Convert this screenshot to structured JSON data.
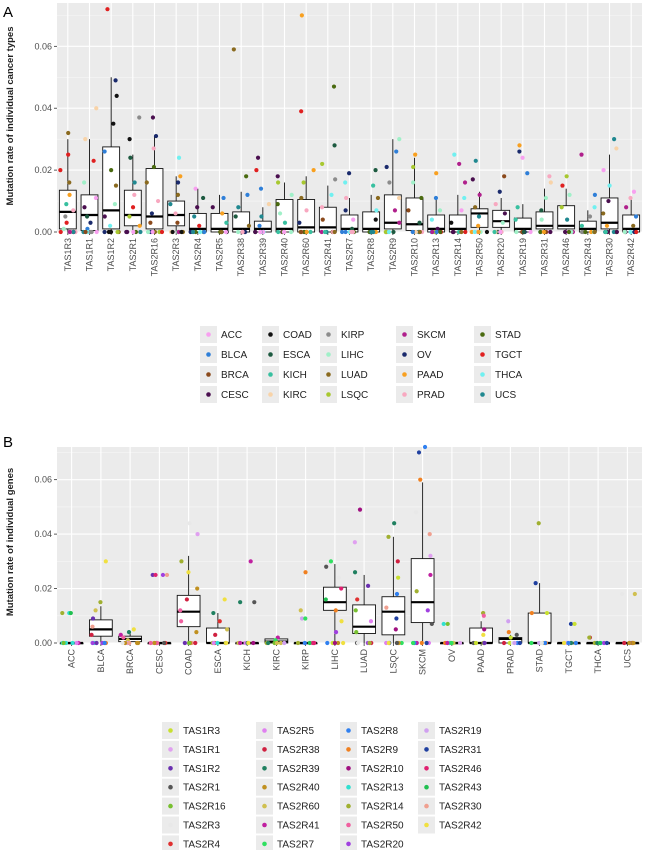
{
  "panels": [
    {
      "letter": "A"
    },
    {
      "letter": "B"
    }
  ],
  "chart_data": [
    {
      "type": "box",
      "panel": "A",
      "title": "",
      "xlabel": "",
      "ylabel": "Mutation rate of individual cancer types",
      "ylim": [
        0,
        0.074
      ],
      "yticks": [
        "0.00",
        "0.02",
        "0.04",
        "0.06"
      ],
      "ytick_values": [
        0,
        0.02,
        0.04,
        0.06
      ],
      "grid": true,
      "legend_position": "bottom",
      "categories": [
        "TAS1R3",
        "TAS1R1",
        "TAS1R2",
        "TAS2R1",
        "TAS2R16",
        "TAS2R3",
        "TAS2R4",
        "TAS2R5",
        "TAS2R38",
        "TAS2R39",
        "TAS2R40",
        "TAS2R60",
        "TAS2R41",
        "TAS2R7",
        "TAS2R8",
        "TAS2R9",
        "TAS2R10",
        "TAS2R13",
        "TAS2R14",
        "TAS2R50",
        "TAS2R20",
        "TAS2R19",
        "TAS2R31",
        "TAS2R46",
        "TAS2R43",
        "TAS2R30",
        "TAS2R42"
      ],
      "boxes": [
        {
          "q1": 0.001,
          "median": 0.0065,
          "q3": 0.0135,
          "lo": 0,
          "hi": 0.03
        },
        {
          "q1": 0.0005,
          "median": 0.0055,
          "q3": 0.012,
          "lo": 0,
          "hi": 0.03
        },
        {
          "q1": 0.001,
          "median": 0.007,
          "q3": 0.0275,
          "lo": 0,
          "hi": 0.05
        },
        {
          "q1": 0.002,
          "median": 0.0055,
          "q3": 0.0135,
          "lo": 0,
          "hi": 0.025
        },
        {
          "q1": 0.001,
          "median": 0.005,
          "q3": 0.0205,
          "lo": 0,
          "hi": 0.031
        },
        {
          "q1": 0.002,
          "median": 0.0055,
          "q3": 0.01,
          "lo": 0,
          "hi": 0.018
        },
        {
          "q1": 0,
          "median": 0.001,
          "q3": 0.006,
          "lo": 0,
          "hi": 0.014
        },
        {
          "q1": 0,
          "median": 0.001,
          "q3": 0.006,
          "lo": 0,
          "hi": 0.012
        },
        {
          "q1": 0,
          "median": 0.001,
          "q3": 0.0065,
          "lo": 0,
          "hi": 0.013
        },
        {
          "q1": 0,
          "median": 0.001,
          "q3": 0.0035,
          "lo": 0,
          "hi": 0.008
        },
        {
          "q1": 0,
          "median": 0.001,
          "q3": 0.0105,
          "lo": 0,
          "hi": 0.016
        },
        {
          "q1": 0,
          "median": 0.0015,
          "q3": 0.0105,
          "lo": 0,
          "hi": 0.018
        },
        {
          "q1": 0,
          "median": 0.0015,
          "q3": 0.008,
          "lo": 0,
          "hi": 0.015
        },
        {
          "q1": 0,
          "median": 0.001,
          "q3": 0.0055,
          "lo": 0,
          "hi": 0.011
        },
        {
          "q1": 0,
          "median": 0.001,
          "q3": 0.0065,
          "lo": 0,
          "hi": 0.012
        },
        {
          "q1": 0.001,
          "median": 0.003,
          "q3": 0.012,
          "lo": 0,
          "hi": 0.03
        },
        {
          "q1": 0.0005,
          "median": 0.0025,
          "q3": 0.011,
          "lo": 0,
          "hi": 0.024
        },
        {
          "q1": 0,
          "median": 0.001,
          "q3": 0.0055,
          "lo": 0,
          "hi": 0.011
        },
        {
          "q1": 0,
          "median": 0.001,
          "q3": 0.0055,
          "lo": 0,
          "hi": 0.012
        },
        {
          "q1": 0.0015,
          "median": 0.006,
          "q3": 0.0075,
          "lo": 0,
          "hi": 0.013
        },
        {
          "q1": 0.0015,
          "median": 0.0035,
          "q3": 0.007,
          "lo": 0,
          "hi": 0.011
        },
        {
          "q1": 0,
          "median": 0.001,
          "q3": 0.0045,
          "lo": 0,
          "hi": 0.009
        },
        {
          "q1": 0.001,
          "median": 0.002,
          "q3": 0.0065,
          "lo": 0,
          "hi": 0.014
        },
        {
          "q1": 0.001,
          "median": 0.002,
          "q3": 0.0085,
          "lo": 0,
          "hi": 0.014
        },
        {
          "q1": 0,
          "median": 0.001,
          "q3": 0.0035,
          "lo": 0,
          "hi": 0.007
        },
        {
          "q1": 0.001,
          "median": 0.003,
          "q3": 0.011,
          "lo": 0,
          "hi": 0.025
        },
        {
          "q1": 0,
          "median": 0.001,
          "q3": 0.0055,
          "lo": 0,
          "hi": 0.011
        }
      ],
      "outliers": [
        [
          0.032,
          0.025,
          0.02,
          0.016,
          0.012,
          0.009,
          0.007,
          0.005,
          0.003,
          0.001,
          0
        ],
        [
          0.04,
          0.03,
          0.023,
          0.016,
          0.011,
          0.008,
          0.005,
          0.003,
          0.001,
          0
        ],
        [
          0.072,
          0.049,
          0.044,
          0.035,
          0.026,
          0.02,
          0.015,
          0.009,
          0.005,
          0.002,
          0
        ],
        [
          0.037,
          0.03,
          0.024,
          0.016,
          0.012,
          0.008,
          0.005,
          0.002,
          0
        ],
        [
          0.037,
          0.031,
          0.027,
          0.021,
          0.016,
          0.01,
          0.006,
          0.003,
          0
        ],
        [
          0.024,
          0.018,
          0.016,
          0.012,
          0.009,
          0.006,
          0.003,
          0
        ],
        [
          0.014,
          0.011,
          0.008,
          0.005,
          0.002,
          0
        ],
        [
          0.011,
          0.008,
          0.006,
          0.003,
          0
        ],
        [
          0.059,
          0.018,
          0.012,
          0.008,
          0.005,
          0.002,
          0
        ],
        [
          0.024,
          0.02,
          0.014,
          0.009,
          0.005,
          0.002,
          0
        ],
        [
          0.018,
          0.016,
          0.012,
          0.009,
          0.006,
          0.003,
          0
        ],
        [
          0.07,
          0.039,
          0.02,
          0.016,
          0.011,
          0.007,
          0.003,
          0
        ],
        [
          0.047,
          0.028,
          0.022,
          0.017,
          0.012,
          0.008,
          0.004,
          0
        ],
        [
          0.019,
          0.016,
          0.011,
          0.007,
          0.004,
          0.001,
          0
        ],
        [
          0.02,
          0.015,
          0.011,
          0.007,
          0.004,
          0
        ],
        [
          0.03,
          0.026,
          0.021,
          0.016,
          0.011,
          0.007,
          0.003,
          0
        ],
        [
          0.025,
          0.021,
          0.016,
          0.011,
          0.007,
          0.003,
          0
        ],
        [
          0.019,
          0.011,
          0.007,
          0.004,
          0.001,
          0
        ],
        [
          0.025,
          0.022,
          0.016,
          0.011,
          0.007,
          0.003,
          0
        ],
        [
          0.023,
          0.017,
          0.012,
          0.008,
          0.005,
          0.002,
          0
        ],
        [
          0.018,
          0.013,
          0.009,
          0.006,
          0.003,
          0
        ],
        [
          0.028,
          0.026,
          0.024,
          0.019,
          0.008,
          0.004,
          0
        ],
        [
          0.018,
          0.016,
          0.011,
          0.007,
          0.004,
          0
        ],
        [
          0.018,
          0.015,
          0.012,
          0.008,
          0.004,
          0
        ],
        [
          0.025,
          0.012,
          0.008,
          0.005,
          0.002,
          0
        ],
        [
          0.03,
          0.027,
          0.02,
          0.015,
          0.01,
          0.006,
          0.002,
          0
        ],
        [
          0.013,
          0.011,
          0.008,
          0.005,
          0.002,
          0
        ]
      ],
      "legend": [
        {
          "name": "ACC",
          "color": "#f8a0f0"
        },
        {
          "name": "BLCA",
          "color": "#2f7fd8"
        },
        {
          "name": "BRCA",
          "color": "#8b4a1c"
        },
        {
          "name": "CESC",
          "color": "#4a0f4f"
        },
        {
          "name": "COAD",
          "color": "#111111"
        },
        {
          "name": "ESCA",
          "color": "#1d5a40"
        },
        {
          "name": "KICH",
          "color": "#38c0a0"
        },
        {
          "name": "KIRC",
          "color": "#f8d3a8"
        },
        {
          "name": "KIRP",
          "color": "#8c8c8c"
        },
        {
          "name": "LIHC",
          "color": "#a0f0c8"
        },
        {
          "name": "LUAD",
          "color": "#8a6a1f"
        },
        {
          "name": "LSQC",
          "color": "#a8c830"
        },
        {
          "name": "SKCM",
          "color": "#b0208c"
        },
        {
          "name": "OV",
          "color": "#1a2a6c"
        },
        {
          "name": "PAAD",
          "color": "#f8a020"
        },
        {
          "name": "PRAD",
          "color": "#f8a8c0"
        },
        {
          "name": "STAD",
          "color": "#4a6a10"
        },
        {
          "name": "TGCT",
          "color": "#e02020"
        },
        {
          "name": "THCA",
          "color": "#70f0f0"
        },
        {
          "name": "UCS",
          "color": "#208890"
        }
      ]
    },
    {
      "type": "box",
      "panel": "B",
      "title": "",
      "xlabel": "",
      "ylabel": "Mutation rate of individual genes",
      "ylim": [
        0,
        0.072
      ],
      "yticks": [
        "0.00",
        "0.02",
        "0.04",
        "0.06"
      ],
      "ytick_values": [
        0,
        0.02,
        0.04,
        0.06
      ],
      "grid": true,
      "legend_position": "bottom",
      "categories": [
        "ACC",
        "BLCA",
        "BRCA",
        "CESC",
        "COAD",
        "ESCA",
        "KICH",
        "KIRC",
        "KIRP",
        "LIHC",
        "LUAD",
        "LSQC",
        "SKCM",
        "OV",
        "PAAD",
        "PRAD",
        "STAD",
        "TGCT",
        "THCA",
        "UCS"
      ],
      "boxes": [
        {
          "q1": 0,
          "median": 0,
          "q3": 0,
          "lo": 0,
          "hi": 0
        },
        {
          "q1": 0.0025,
          "median": 0.005,
          "q3": 0.0085,
          "lo": 0,
          "hi": 0.0135
        },
        {
          "q1": 0.0005,
          "median": 0.0015,
          "q3": 0.0025,
          "lo": 0,
          "hi": 0.004
        },
        {
          "q1": 0,
          "median": 0,
          "q3": 0,
          "lo": 0,
          "hi": 0
        },
        {
          "q1": 0.006,
          "median": 0.0115,
          "q3": 0.0175,
          "lo": 0,
          "hi": 0.032
        },
        {
          "q1": 0,
          "median": 0,
          "q3": 0.0055,
          "lo": 0,
          "hi": 0.011
        },
        {
          "q1": 0,
          "median": 0,
          "q3": 0,
          "lo": 0,
          "hi": 0
        },
        {
          "q1": 0,
          "median": 0.0005,
          "q3": 0.0015,
          "lo": 0,
          "hi": 0.002
        },
        {
          "q1": 0,
          "median": 0,
          "q3": 0,
          "lo": 0,
          "hi": 0
        },
        {
          "q1": 0.012,
          "median": 0.015,
          "q3": 0.0205,
          "lo": 0,
          "hi": 0.029
        },
        {
          "q1": 0.0035,
          "median": 0.006,
          "q3": 0.014,
          "lo": 0,
          "hi": 0.025
        },
        {
          "q1": 0.003,
          "median": 0.0115,
          "q3": 0.017,
          "lo": 0,
          "hi": 0.039
        },
        {
          "q1": 0.0075,
          "median": 0.015,
          "q3": 0.031,
          "lo": 0,
          "hi": 0.059
        },
        {
          "q1": 0,
          "median": 0,
          "q3": 0,
          "lo": 0,
          "hi": 0
        },
        {
          "q1": 0,
          "median": 0,
          "q3": 0.0055,
          "lo": 0,
          "hi": 0.008
        },
        {
          "q1": 0,
          "median": 0.0015,
          "q3": 0.002,
          "lo": 0,
          "hi": 0.003
        },
        {
          "q1": 0,
          "median": 0,
          "q3": 0.011,
          "lo": 0,
          "hi": 0.022
        },
        {
          "q1": 0,
          "median": 0,
          "q3": 0,
          "lo": 0,
          "hi": 0
        },
        {
          "q1": 0,
          "median": 0,
          "q3": 0,
          "lo": 0,
          "hi": 0
        },
        {
          "q1": 0,
          "median": 0,
          "q3": 0,
          "lo": 0,
          "hi": 0
        }
      ],
      "outliers": [
        [
          0.011,
          0.011,
          0.011,
          0
        ],
        [
          0.03,
          0.015,
          0.012,
          0.009,
          0.006,
          0.003,
          0
        ],
        [
          0.005,
          0.004,
          0.003,
          0.002,
          0.001,
          0
        ],
        [
          0.025,
          0.025,
          0.025,
          0.025,
          0
        ],
        [
          0.044,
          0.04,
          0.03,
          0.026,
          0.02,
          0.016,
          0.012,
          0.008,
          0.004,
          0
        ],
        [
          0.016,
          0.011,
          0.008,
          0.005,
          0.003,
          0
        ],
        [
          0.03,
          0.015,
          0.015,
          0
        ],
        [
          0.002,
          0.001,
          0
        ],
        [
          0.026,
          0.012,
          0.009,
          0.009,
          0
        ],
        [
          0.03,
          0.028,
          0.024,
          0.02,
          0.016,
          0.012,
          0.008,
          0.004,
          0
        ],
        [
          0.049,
          0.037,
          0.026,
          0.021,
          0.016,
          0.012,
          0.008,
          0.004,
          0
        ],
        [
          0.044,
          0.039,
          0.03,
          0.024,
          0.018,
          0.013,
          0.009,
          0.005,
          0
        ],
        [
          0.072,
          0.07,
          0.06,
          0.048,
          0.04,
          0.032,
          0.025,
          0.019,
          0.012,
          0.007,
          0
        ],
        [
          0.007,
          0.007,
          0
        ],
        [
          0.011,
          0.011,
          0.01,
          0.005,
          0.003,
          0
        ],
        [
          0.008,
          0.004,
          0.003,
          0.002,
          0
        ],
        [
          0.044,
          0.022,
          0.011,
          0.011,
          0
        ],
        [
          0.007,
          0.007,
          0
        ],
        [
          0.002,
          0.002,
          0
        ],
        [
          0.018,
          0.018,
          0
        ]
      ],
      "legend": [
        {
          "name": "TAS1R3",
          "color": "#c8e030"
        },
        {
          "name": "TAS1R1",
          "color": "#e0a0f0"
        },
        {
          "name": "TAS1R2",
          "color": "#6a30b0"
        },
        {
          "name": "TAS2R1",
          "color": "#555555"
        },
        {
          "name": "TAS2R16",
          "color": "#78c030"
        },
        {
          "name": "TAS2R3",
          "color": "#e8e8e8"
        },
        {
          "name": "TAS2R4",
          "color": "#e03030"
        },
        {
          "name": "TAS2R5",
          "color": "#e080f0"
        },
        {
          "name": "TAS2R38",
          "color": "#d02040"
        },
        {
          "name": "TAS2R39",
          "color": "#208060"
        },
        {
          "name": "TAS2R40",
          "color": "#c09020"
        },
        {
          "name": "TAS2R60",
          "color": "#d0c050"
        },
        {
          "name": "TAS2R41",
          "color": "#c020a0"
        },
        {
          "name": "TAS2R7",
          "color": "#30e060"
        },
        {
          "name": "TAS2R8",
          "color": "#3080f0"
        },
        {
          "name": "TAS2R9",
          "color": "#f08020"
        },
        {
          "name": "TAS2R10",
          "color": "#a01080"
        },
        {
          "name": "TAS2R13",
          "color": "#30e0d0"
        },
        {
          "name": "TAS2R14",
          "color": "#a0b030"
        },
        {
          "name": "TAS2R50",
          "color": "#f060a0"
        },
        {
          "name": "TAS2R20",
          "color": "#a040e0"
        },
        {
          "name": "TAS2R19",
          "color": "#d0a0f0"
        },
        {
          "name": "TAS2R31",
          "color": "#2040a0"
        },
        {
          "name": "TAS2R46",
          "color": "#e02070"
        },
        {
          "name": "TAS2R43",
          "color": "#20c050"
        },
        {
          "name": "TAS2R30",
          "color": "#f0a090"
        },
        {
          "name": "TAS2R42",
          "color": "#f0e040"
        }
      ]
    }
  ]
}
